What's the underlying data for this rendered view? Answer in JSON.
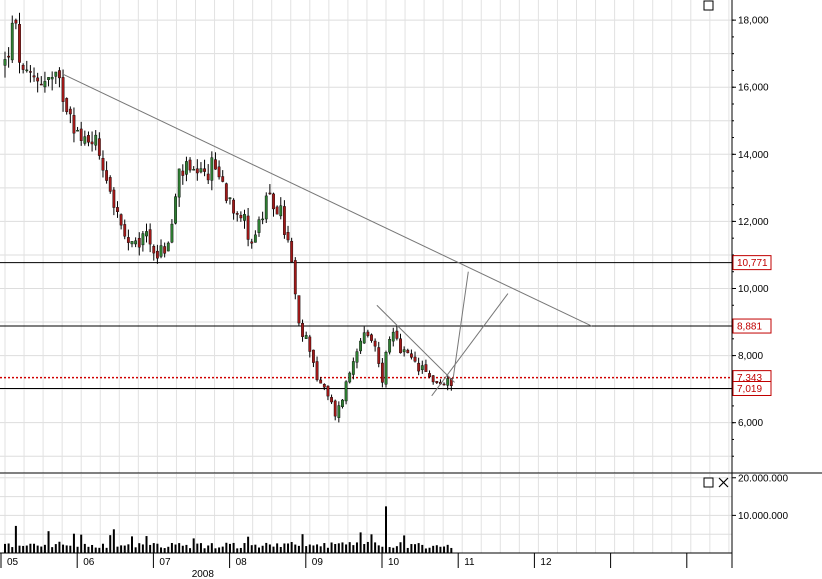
{
  "chart_data": {
    "type": "candlestick",
    "panes": [
      {
        "name": "",
        "y_ticks": [
          "18,000",
          "16,000",
          "14,000",
          "12,000",
          "10,000",
          "8,000",
          "6,000"
        ],
        "y_tick_values": [
          18000,
          16000,
          14000,
          12000,
          10000,
          8000,
          6000
        ],
        "ylim": [
          4500,
          18600
        ],
        "grid": true,
        "levels": [
          {
            "label": "10,771",
            "value": 10771,
            "color": "#c00000",
            "style": "solid"
          },
          {
            "label": "8,881",
            "value": 8881,
            "color": "#c00000",
            "style": "solid"
          },
          {
            "label": "7,343",
            "value": 7343,
            "color": "#c00000",
            "style": "dotted"
          },
          {
            "label": "7,019",
            "value": 7019,
            "color": "#c00000",
            "style": "solid"
          }
        ],
        "level_line_values": [
          10771,
          8881,
          7019
        ]
      },
      {
        "name": "",
        "type": "volume",
        "y_ticks": [
          "20.000.000",
          "10.000.000"
        ],
        "y_tick_values": [
          20000000,
          10000000
        ],
        "ylim": [
          0,
          21000000
        ]
      }
    ],
    "x_ticks": [
      "05",
      "06",
      "07",
      "08",
      "09",
      "10",
      "11",
      "12"
    ],
    "x_year_label": "2008",
    "x_month_positions": [
      0,
      1,
      2,
      3,
      4,
      5,
      6,
      7
    ],
    "anchors": [
      {
        "m": 0.0,
        "c": 16700
      },
      {
        "m": 0.12,
        "c": 17900
      },
      {
        "m": 0.25,
        "c": 16100
      },
      {
        "m": 0.45,
        "c": 16300
      },
      {
        "m": 0.7,
        "c": 16100
      },
      {
        "m": 0.85,
        "c": 15400
      },
      {
        "m": 1.0,
        "c": 14300
      },
      {
        "m": 1.15,
        "c": 14600
      },
      {
        "m": 1.3,
        "c": 13700
      },
      {
        "m": 1.55,
        "c": 11500
      },
      {
        "m": 1.7,
        "c": 11100
      },
      {
        "m": 1.85,
        "c": 11700
      },
      {
        "m": 2.0,
        "c": 11000
      },
      {
        "m": 2.15,
        "c": 11300
      },
      {
        "m": 2.3,
        "c": 13600
      },
      {
        "m": 2.55,
        "c": 13200
      },
      {
        "m": 2.75,
        "c": 13700
      },
      {
        "m": 2.9,
        "c": 12900
      },
      {
        "m": 3.1,
        "c": 12200
      },
      {
        "m": 3.25,
        "c": 11400
      },
      {
        "m": 3.45,
        "c": 12600
      },
      {
        "m": 3.6,
        "c": 12400
      },
      {
        "m": 3.75,
        "c": 11000
      },
      {
        "m": 3.85,
        "c": 8800
      },
      {
        "m": 4.0,
        "c": 8300
      },
      {
        "m": 4.1,
        "c": 7300
      },
      {
        "m": 4.25,
        "c": 6700
      },
      {
        "m": 4.35,
        "c": 6200
      },
      {
        "m": 4.55,
        "c": 7700
      },
      {
        "m": 4.65,
        "c": 8600
      },
      {
        "m": 4.85,
        "c": 8300
      },
      {
        "m": 4.95,
        "c": 7300
      },
      {
        "m": 5.05,
        "c": 8700
      },
      {
        "m": 5.2,
        "c": 8100
      },
      {
        "m": 5.35,
        "c": 7800
      },
      {
        "m": 5.55,
        "c": 7400
      },
      {
        "m": 5.75,
        "c": 7100
      },
      {
        "m": 5.9,
        "c": 7300
      }
    ],
    "volume_spikes": [
      {
        "m": 0.15,
        "v": 7200000
      },
      {
        "m": 0.55,
        "v": 5800000
      },
      {
        "m": 1.45,
        "v": 6300000
      },
      {
        "m": 1.88,
        "v": 4500000
      },
      {
        "m": 3.9,
        "v": 5000000
      },
      {
        "m": 5.02,
        "v": 12400000
      }
    ],
    "trendlines": [
      {
        "from": {
          "m": 0.75,
          "c": 16400
        },
        "to": {
          "m": 7.7,
          "c": 8880
        }
      },
      {
        "from": {
          "m": 4.88,
          "c": 9500
        },
        "to": {
          "m": 5.9,
          "c": 7200
        }
      },
      {
        "from": {
          "m": 5.6,
          "c": 6800
        },
        "to": {
          "m": 6.6,
          "c": 9850
        }
      },
      {
        "from": {
          "m": 5.88,
          "c": 7300
        },
        "to": {
          "m": 6.08,
          "c": 10500
        }
      }
    ],
    "current_price_label": "7,343"
  }
}
